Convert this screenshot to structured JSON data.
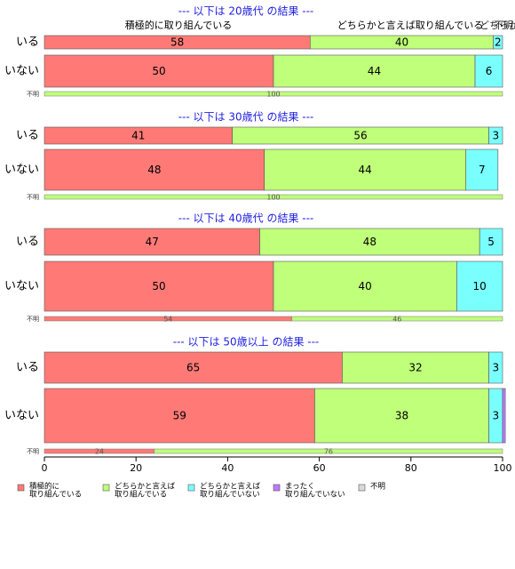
{
  "chart_data": {
    "type": "bar",
    "orientation": "horizontal",
    "stacked": true,
    "xlim": [
      0,
      100
    ],
    "xticks": [
      "0",
      "20",
      "40",
      "60",
      "80",
      "100"
    ],
    "colors": {
      "積極的に取り組んでいる": "#ff7a76",
      "どちらかと言えば取り組んでいる": "#bfff7a",
      "どちらかと言えば取り組んでいない": "#7affff",
      "まったく取り組んでいない": "#bb7aff",
      "不明": "#d9d9d9"
    },
    "legend": [
      {
        "key": "積極的に取り組んでいる",
        "lines": [
          "積極的に",
          "取り組んでいる"
        ]
      },
      {
        "key": "どちらかと言えば取り組んでいる",
        "lines": [
          "どちらかと言えば",
          "取り組んでいる"
        ]
      },
      {
        "key": "どちらかと言えば取り組んでいない",
        "lines": [
          "どちらかと言えば",
          "取り組んでいない"
        ]
      },
      {
        "key": "まったく取り組んでいない",
        "lines": [
          "まったく",
          "取り組んでいない"
        ]
      },
      {
        "key": "不明",
        "lines": [
          "不明"
        ]
      }
    ],
    "top_annotations": [
      "積極的に取り組んでいる",
      "どちらかと言えば取り組んでいる",
      "どちらかと",
      "不明"
    ],
    "groups": [
      {
        "title": "--- 以下は 20歳代 の結果 ---",
        "bars": [
          {
            "label": "いる",
            "segments": [
              {
                "key": "積極的に取り組んでいる",
                "value": 58,
                "text": "58"
              },
              {
                "key": "どちらかと言えば取り組んでいる",
                "value": 40,
                "text": "40"
              },
              {
                "key": "どちらかと言えば取り組んでいない",
                "value": 2,
                "text": "2"
              }
            ]
          },
          {
            "label": "いない",
            "segments": [
              {
                "key": "積極的に取り組んでいる",
                "value": 50,
                "text": "50"
              },
              {
                "key": "どちらかと言えば取り組んでいる",
                "value": 44,
                "text": "44"
              },
              {
                "key": "どちらかと言えば取り組んでいない",
                "value": 6,
                "text": "6"
              }
            ]
          }
        ],
        "fumei": {
          "label": "不明",
          "segments": [
            {
              "key": "どちらかと言えば取り組んでいる",
              "value": 100,
              "text": "100"
            }
          ]
        }
      },
      {
        "title": "--- 以下は 30歳代 の結果 ---",
        "bars": [
          {
            "label": "いる",
            "segments": [
              {
                "key": "積極的に取り組んでいる",
                "value": 41,
                "text": "41"
              },
              {
                "key": "どちらかと言えば取り組んでいる",
                "value": 56,
                "text": "56"
              },
              {
                "key": "どちらかと言えば取り組んでいない",
                "value": 3,
                "text": "3"
              }
            ]
          },
          {
            "label": "いない",
            "segments": [
              {
                "key": "積極的に取り組んでいる",
                "value": 48,
                "text": "48"
              },
              {
                "key": "どちらかと言えば取り組んでいる",
                "value": 44,
                "text": "44"
              },
              {
                "key": "どちらかと言えば取り組んでいない",
                "value": 7,
                "text": "7"
              }
            ]
          }
        ],
        "fumei": {
          "label": "不明",
          "segments": [
            {
              "key": "どちらかと言えば取り組んでいる",
              "value": 100,
              "text": "100"
            }
          ]
        }
      },
      {
        "title": "--- 以下は 40歳代 の結果 ---",
        "bars": [
          {
            "label": "いる",
            "segments": [
              {
                "key": "積極的に取り組んでいる",
                "value": 47,
                "text": "47"
              },
              {
                "key": "どちらかと言えば取り組んでいる",
                "value": 48,
                "text": "48"
              },
              {
                "key": "どちらかと言えば取り組んでいない",
                "value": 5,
                "text": "5"
              }
            ]
          },
          {
            "label": "いない",
            "segments": [
              {
                "key": "積極的に取り組んでいる",
                "value": 50,
                "text": "50"
              },
              {
                "key": "どちらかと言えば取り組んでいる",
                "value": 40,
                "text": "40"
              },
              {
                "key": "どちらかと言えば取り組んでいない",
                "value": 10,
                "text": "10"
              }
            ]
          }
        ],
        "fumei": {
          "label": "不明",
          "segments": [
            {
              "key": "積極的に取り組んでいる",
              "value": 54,
              "text": "54"
            },
            {
              "key": "どちらかと言えば取り組んでいる",
              "value": 46,
              "text": "46"
            }
          ]
        }
      },
      {
        "title": "--- 以下は 50歳以上 の結果 ---",
        "bars": [
          {
            "label": "いる",
            "segments": [
              {
                "key": "積極的に取り組んでいる",
                "value": 65,
                "text": "65"
              },
              {
                "key": "どちらかと言えば取り組んでいる",
                "value": 32,
                "text": "32"
              },
              {
                "key": "どちらかと言えば取り組んでいない",
                "value": 3,
                "text": "3"
              }
            ]
          },
          {
            "label": "いない",
            "segments": [
              {
                "key": "積極的に取り組んでいる",
                "value": 59,
                "text": "59"
              },
              {
                "key": "どちらかと言えば取り組んでいる",
                "value": 38,
                "text": "38"
              },
              {
                "key": "どちらかと言えば取り組んでいない",
                "value": 3,
                "text": "3"
              },
              {
                "key": "まったく取り組んでいない",
                "value": 0.6,
                "text": ""
              }
            ]
          }
        ],
        "fumei": {
          "label": "不明",
          "segments": [
            {
              "key": "積極的に取り組んでいる",
              "value": 24,
              "text": "24"
            },
            {
              "key": "どちらかと言えば取り組んでいる",
              "value": 76,
              "text": "76"
            }
          ]
        }
      }
    ]
  }
}
